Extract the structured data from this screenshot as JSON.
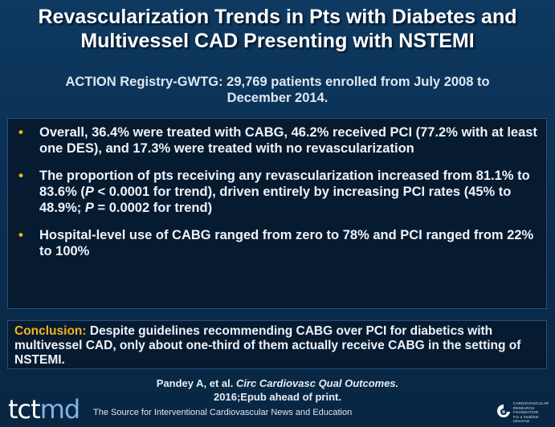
{
  "slide": {
    "title_line1": "Revascularization Trends in Pts with Diabetes and",
    "title_line2": "Multivessel CAD Presenting with NSTEMI",
    "subtitle_line1": "ACTION Registry-GWTG: 29,769 patients enrolled from July 2008 to",
    "subtitle_line2": "December 2014.",
    "bullets": [
      {
        "text": "Overall, 36.4% were treated with CABG, 46.2% received PCI (77.2% with at least one DES), and 17.3% were treated with no revascularization"
      },
      {
        "pre": "The proportion of pts receiving any revascularization increased from 81.1% to 83.6% (",
        "italic1": "P",
        "mid": " < 0.0001 for trend), driven entirely by increasing PCI rates (45% to 48.9%; ",
        "italic2": "P",
        "post": " = 0.0002 for trend)"
      },
      {
        "text": "Hospital-level use of CABG ranged from zero to 78% and PCI ranged from 22% to 100%"
      }
    ],
    "bullet_glyph": "•",
    "conclusion_label": "Conclusion:",
    "conclusion_text": " Despite guidelines recommending CABG over PCI for diabetics with multivessel CAD, only about one-third of them actually receive CABG in the setting of NSTEMI.",
    "citation_author": "Pandey A, et al. ",
    "citation_journal": "Circ Cardiovasc Qual Outcomes.",
    "citation_line2": "2016;Epub ahead of print."
  },
  "footer": {
    "logo_tct": "tct",
    "logo_md": "md",
    "tagline": "The Source for Interventional Cardiovascular News and Education",
    "crf_line1": "CARDIOVASCULAR",
    "crf_line2": "RESEARCH",
    "crf_line3": "FOUNDATION",
    "crf_line4": "For a healthier tomorrow"
  },
  "colors": {
    "background": "#0b2f52",
    "accent": "#f3b41b",
    "box": "#061a30"
  }
}
